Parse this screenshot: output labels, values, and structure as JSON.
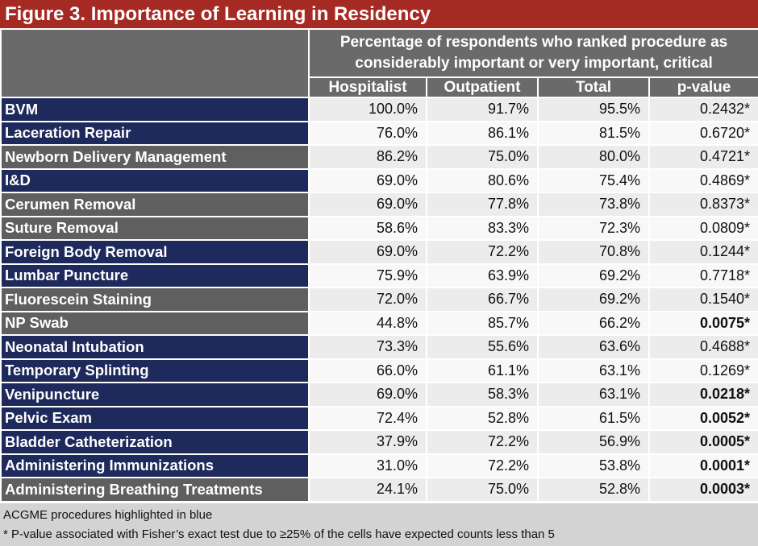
{
  "title": "Figure 3. Importance of Learning in Residency",
  "span_header": [
    "Percentage of respondents who ranked procedure as",
    "considerably important or very important, critical"
  ],
  "columns": [
    "Hospitalist",
    "Outpatient",
    "Total",
    "p-value"
  ],
  "colors": {
    "title_bg": "#a52a24",
    "acgme_bg": "#1f2a5c",
    "other_bg": "#5f5f5f",
    "header_bg": "#6a6a6a",
    "footnote_bg": "#d3d3d3"
  },
  "rows": [
    {
      "procedure": "BVM",
      "acgme": true,
      "hospitalist": "100.0%",
      "outpatient": "91.7%",
      "total": "95.5%",
      "p_value": "0.2432*",
      "significant": false
    },
    {
      "procedure": "Laceration Repair",
      "acgme": true,
      "hospitalist": "76.0%",
      "outpatient": "86.1%",
      "total": "81.5%",
      "p_value": "0.6720*",
      "significant": false
    },
    {
      "procedure": "Newborn Delivery Management",
      "acgme": false,
      "hospitalist": "86.2%",
      "outpatient": "75.0%",
      "total": "80.0%",
      "p_value": "0.4721*",
      "significant": false
    },
    {
      "procedure": "I&D",
      "acgme": true,
      "hospitalist": "69.0%",
      "outpatient": "80.6%",
      "total": "75.4%",
      "p_value": "0.4869*",
      "significant": false
    },
    {
      "procedure": "Cerumen Removal",
      "acgme": false,
      "hospitalist": "69.0%",
      "outpatient": "77.8%",
      "total": "73.8%",
      "p_value": "0.8373*",
      "significant": false
    },
    {
      "procedure": "Suture Removal",
      "acgme": false,
      "hospitalist": "58.6%",
      "outpatient": "83.3%",
      "total": "72.3%",
      "p_value": "0.0809*",
      "significant": false
    },
    {
      "procedure": "Foreign Body Removal",
      "acgme": true,
      "hospitalist": "69.0%",
      "outpatient": "72.2%",
      "total": "70.8%",
      "p_value": "0.1244*",
      "significant": false
    },
    {
      "procedure": "Lumbar Puncture",
      "acgme": true,
      "hospitalist": "75.9%",
      "outpatient": "63.9%",
      "total": "69.2%",
      "p_value": "0.7718*",
      "significant": false
    },
    {
      "procedure": "Fluorescein Staining",
      "acgme": false,
      "hospitalist": "72.0%",
      "outpatient": "66.7%",
      "total": "69.2%",
      "p_value": "0.1540*",
      "significant": false
    },
    {
      "procedure": "NP Swab",
      "acgme": false,
      "hospitalist": "44.8%",
      "outpatient": "85.7%",
      "total": "66.2%",
      "p_value": "0.0075*",
      "significant": true
    },
    {
      "procedure": "Neonatal Intubation",
      "acgme": true,
      "hospitalist": "73.3%",
      "outpatient": "55.6%",
      "total": "63.6%",
      "p_value": "0.4688*",
      "significant": false
    },
    {
      "procedure": "Temporary Splinting",
      "acgme": true,
      "hospitalist": "66.0%",
      "outpatient": "61.1%",
      "total": "63.1%",
      "p_value": "0.1269*",
      "significant": false
    },
    {
      "procedure": "Venipuncture",
      "acgme": true,
      "hospitalist": "69.0%",
      "outpatient": "58.3%",
      "total": "63.1%",
      "p_value": "0.0218*",
      "significant": true
    },
    {
      "procedure": "Pelvic Exam",
      "acgme": true,
      "hospitalist": "72.4%",
      "outpatient": "52.8%",
      "total": "61.5%",
      "p_value": "0.0052*",
      "significant": true
    },
    {
      "procedure": "Bladder Catheterization",
      "acgme": true,
      "hospitalist": "37.9%",
      "outpatient": "72.2%",
      "total": "56.9%",
      "p_value": "0.0005*",
      "significant": true
    },
    {
      "procedure": "Administering Immunizations",
      "acgme": true,
      "hospitalist": "31.0%",
      "outpatient": "72.2%",
      "total": "53.8%",
      "p_value": "0.0001*",
      "significant": true
    },
    {
      "procedure": "Administering Breathing Treatments",
      "acgme": false,
      "hospitalist": "24.1%",
      "outpatient": "75.0%",
      "total": "52.8%",
      "p_value": "0.0003*",
      "significant": true
    }
  ],
  "footnotes": [
    "ACGME procedures highlighted in blue",
    "* P-value associated with Fisher’s exact test due to ≥25% of the cells have expected counts less than 5"
  ]
}
